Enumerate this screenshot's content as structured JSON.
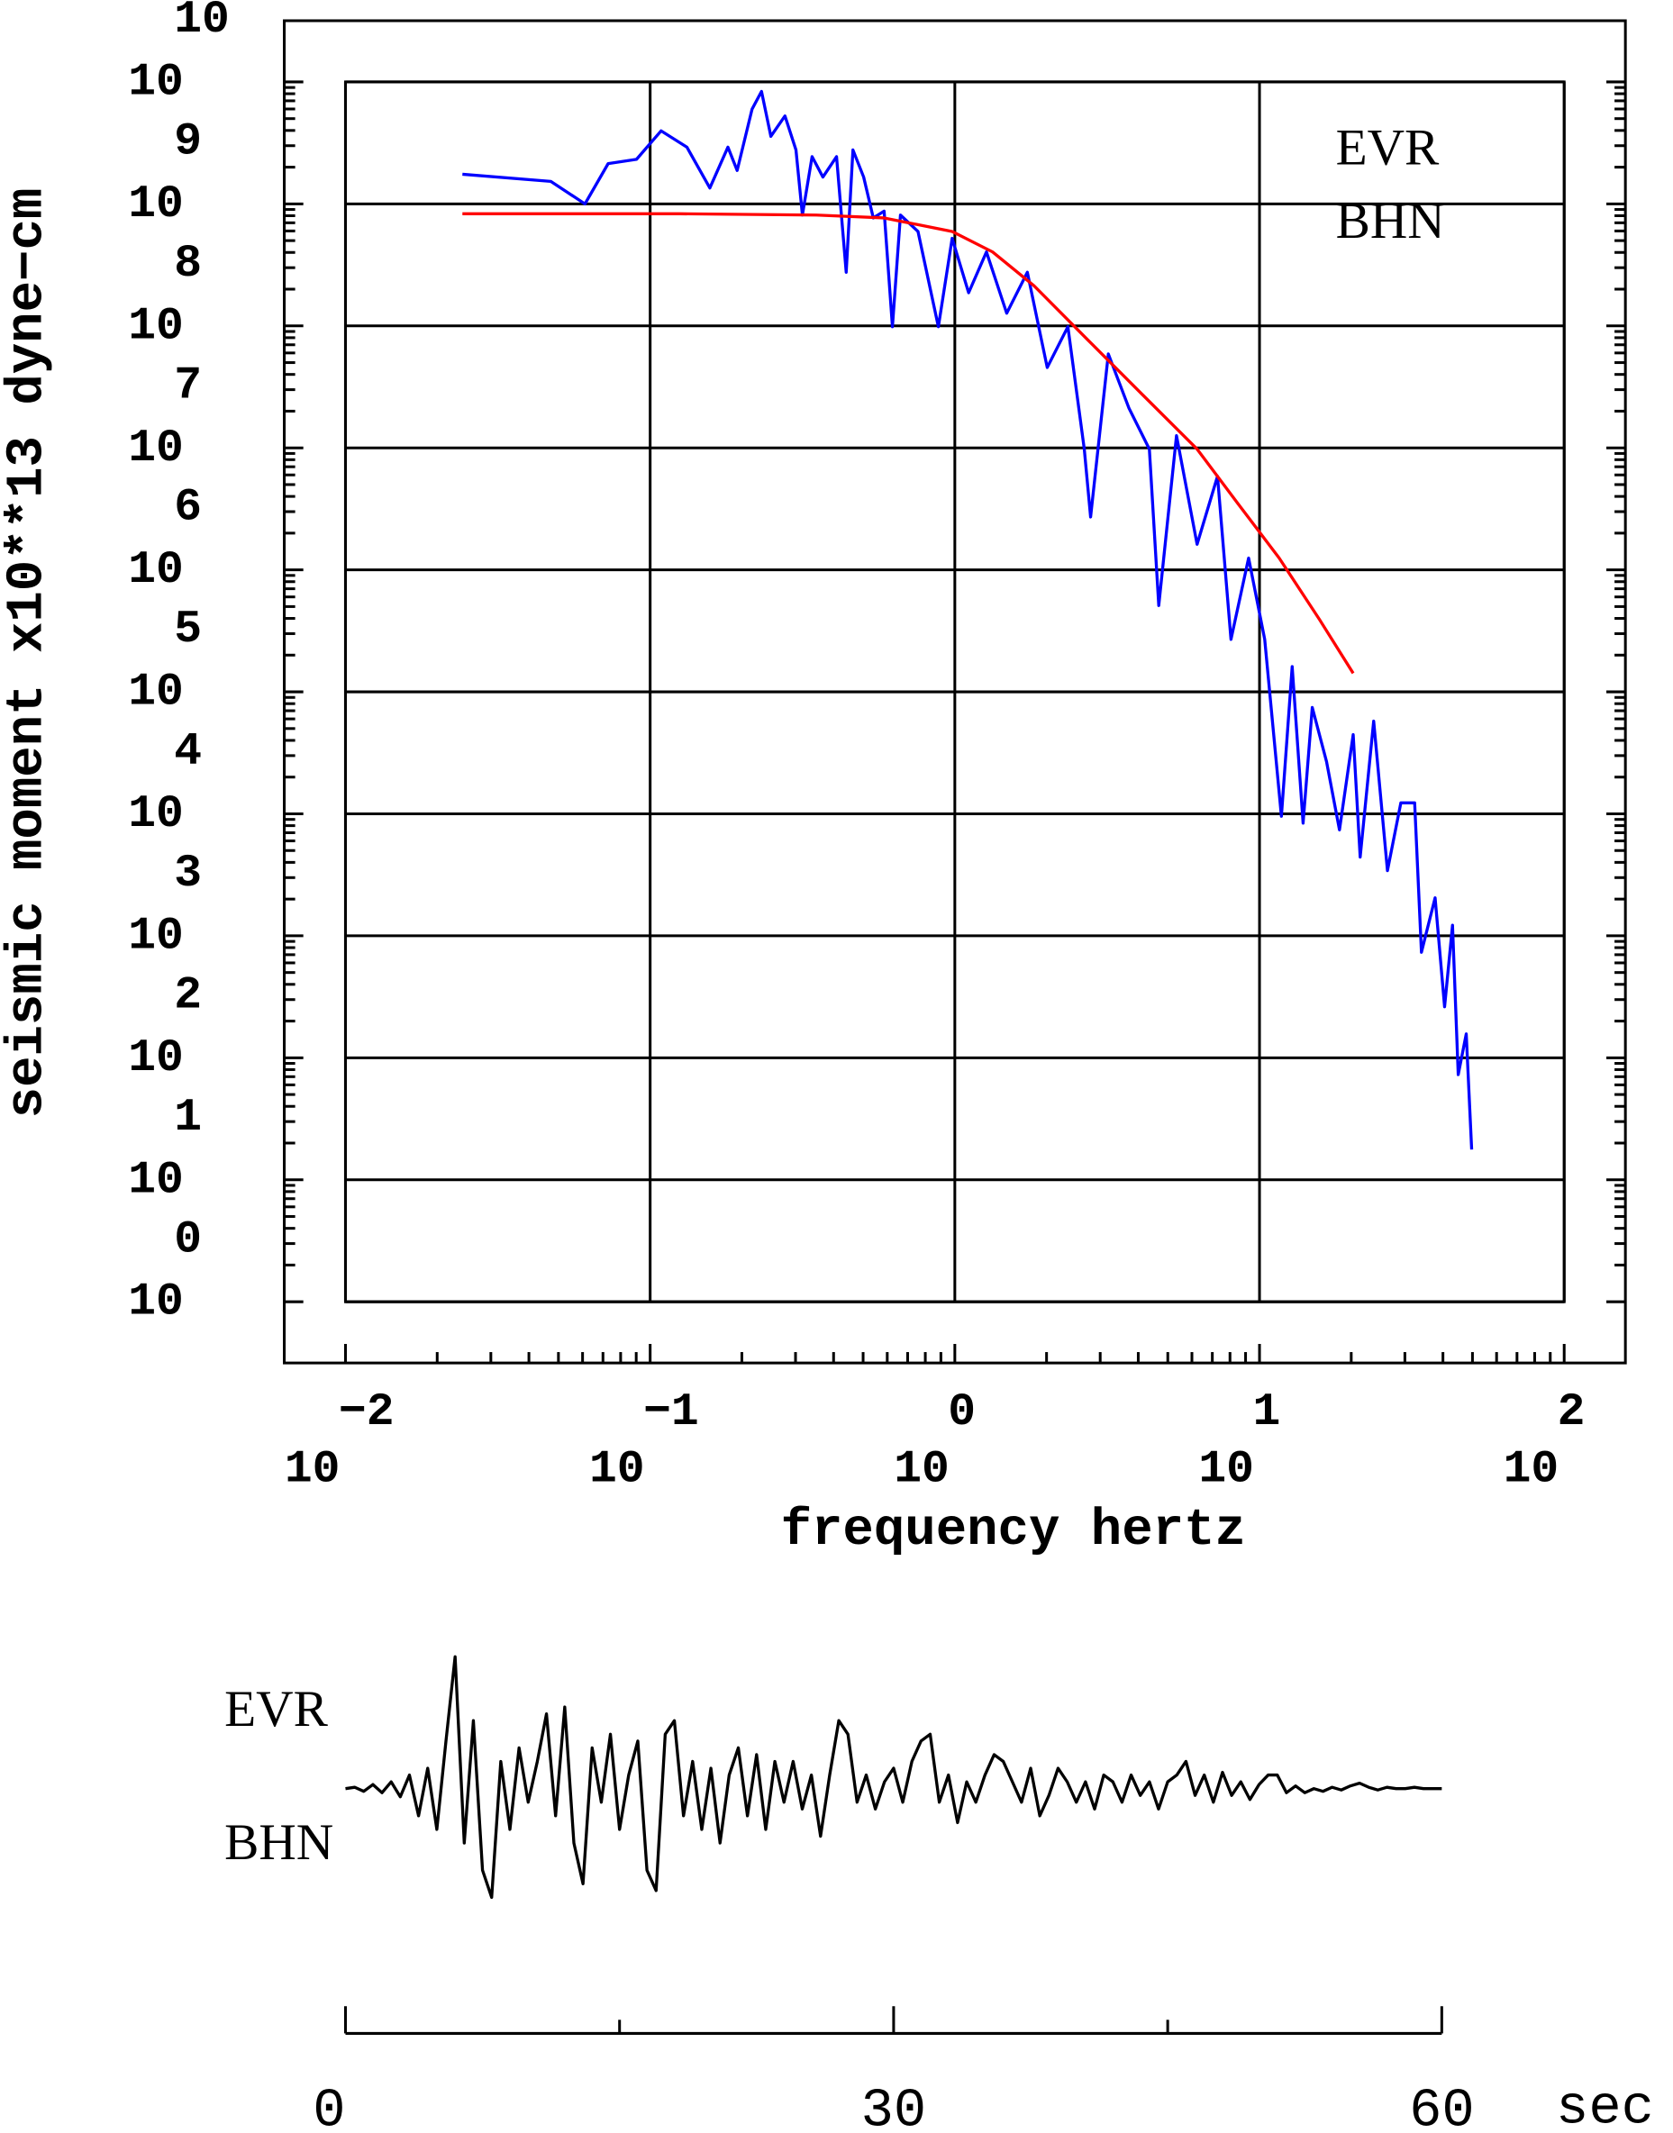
{
  "chart_data": [
    {
      "type": "line",
      "xlog": true,
      "ylog": true,
      "grid": true,
      "xlabel": "frequency  hertz",
      "ylabel": "seismic moment x10**13 dyne−cm",
      "annotations": [
        "EVR",
        "BHN"
      ],
      "xlim": [
        0.01,
        100
      ],
      "ylim": [
        1,
        10000000000
      ],
      "xticks": [
        {
          "value": 0.01,
          "label": [
            "10",
            "−2"
          ]
        },
        {
          "value": 0.1,
          "label": [
            "10",
            "−1"
          ]
        },
        {
          "value": 1,
          "label": [
            "10",
            "0"
          ]
        },
        {
          "value": 10,
          "label": [
            "10",
            "1"
          ]
        },
        {
          "value": 100,
          "label": [
            "10",
            "2"
          ]
        }
      ],
      "yticks": [
        {
          "value": 1,
          "label": [
            "10",
            "0"
          ]
        },
        {
          "value": 10,
          "label": [
            "10",
            "1"
          ]
        },
        {
          "value": 100,
          "label": [
            "10",
            "2"
          ]
        },
        {
          "value": 1000,
          "label": [
            "10",
            "3"
          ]
        },
        {
          "value": 10000,
          "label": [
            "10",
            "4"
          ]
        },
        {
          "value": 100000,
          "label": [
            "10",
            "5"
          ]
        },
        {
          "value": 1000000,
          "label": [
            "10",
            "6"
          ]
        },
        {
          "value": 10000000,
          "label": [
            "10",
            "7"
          ]
        },
        {
          "value": 100000000,
          "label": [
            "10",
            "8"
          ]
        },
        {
          "value": 1000000000,
          "label": [
            "10",
            "9"
          ]
        },
        {
          "value": 10000000000,
          "label": [
            "10",
            "10"
          ]
        }
      ],
      "series": [
        {
          "color": "#0000ff",
          "x": [
            0.0242,
            0.0472,
            0.0611,
            0.0728,
            0.0902,
            0.1086,
            0.132,
            0.157,
            0.18,
            0.193,
            0.216,
            0.232,
            0.249,
            0.277,
            0.301,
            0.316,
            0.34,
            0.369,
            0.409,
            0.44,
            0.463,
            0.502,
            0.54,
            0.586,
            0.624,
            0.663,
            0.757,
            0.883,
            0.98,
            1.11,
            1.27,
            1.48,
            1.73,
            2.01,
            2.35,
            2.66,
            2.79,
            3.19,
            3.73,
            4.35,
            4.67,
            5.34,
            6.24,
            7.28,
            8.06,
            9.21,
            10.4,
            11.8,
            12.8,
            13.9,
            14.9,
            16.6,
            18.3,
            20.3,
            21.4,
            23.7,
            26.3,
            29.1,
            32.3,
            34.0,
            37.7,
            40.5,
            43.0,
            44.9,
            47.7,
            49.7
          ],
          "values": [
            1750000000,
            1530000000,
            1000000000,
            2140000000,
            2320000000,
            3970000000,
            2920000000,
            1350000000,
            2920000000,
            1880000000,
            5980000000,
            8360000000,
            3580000000,
            5260000000,
            2770000000,
            810000000,
            2440000000,
            1660000000,
            2440000000,
            275000000,
            2770000000,
            1660000000,
            767000000,
            873000000,
            98400000,
            810000000,
            594000000,
            98400000,
            522000000,
            187000000,
            404000000,
            127000000,
            275000000,
            45600000,
            98400000,
            9770000,
            2710000,
            58900000,
            21100000,
            9770000,
            510000,
            12600000,
            1620000,
            5850000,
            269000,
            1250000,
            269000,
            9550,
            161000,
            8390,
            74500,
            26700,
            7380,
            44600,
            4420,
            57600,
            3420,
            12300,
            12300,
            733,
            2050,
            262,
            1220,
            72.8,
            157,
            17.7
          ]
        },
        {
          "color": "#ff0000",
          "x": [
            0.0242,
            0.125,
            0.351,
            0.586,
            0.98,
            1.33,
            1.82,
            2.74,
            4.13,
            6.24,
            8.49,
            11.6,
            15.7,
            20.3
          ],
          "values": [
            830000000,
            830000000,
            810000000,
            767000000,
            594000000,
            404000000,
            213000000,
            76200000,
            27300000,
            9770000,
            3500000,
            1250000,
            395000,
            142000
          ]
        }
      ]
    },
    {
      "type": "line",
      "annotations": [
        "EVR",
        "BHN"
      ],
      "xunit": "sec",
      "xlim": [
        0,
        60
      ],
      "ylim": [
        -1,
        1
      ],
      "xticks": [
        0,
        30,
        60
      ],
      "xminorticks": [
        15,
        45
      ],
      "series": [
        {
          "color": "#000000",
          "x": [
            0,
            0.5,
            1,
            1.5,
            2,
            2.5,
            3,
            3.5,
            4,
            4.5,
            5,
            5.5,
            6,
            6.5,
            7,
            7.5,
            8,
            8.5,
            9,
            9.5,
            10,
            10.5,
            11,
            11.5,
            12,
            12.5,
            13,
            13.5,
            14,
            14.5,
            15,
            15.5,
            16,
            16.5,
            17,
            17.5,
            18,
            18.5,
            19,
            19.5,
            20,
            20.5,
            21,
            21.5,
            22,
            22.5,
            23,
            23.5,
            24,
            24.5,
            25,
            25.5,
            26,
            26.5,
            27,
            27.5,
            28,
            28.5,
            29,
            29.5,
            30,
            30.5,
            31,
            31.5,
            32,
            32.5,
            33,
            33.5,
            34,
            34.5,
            35,
            35.5,
            36,
            36.5,
            37,
            37.5,
            38,
            38.5,
            39,
            39.5,
            40,
            40.5,
            41,
            41.5,
            42,
            42.5,
            43,
            43.5,
            44,
            44.5,
            45,
            45.5,
            46,
            46.5,
            47,
            47.5,
            48,
            48.5,
            49,
            49.5,
            50,
            50.5,
            51,
            51.5,
            52,
            52.5,
            53,
            53.5,
            54,
            54.5,
            55,
            55.5,
            56,
            56.5,
            57,
            57.5,
            58,
            58.5,
            59,
            59.5,
            60
          ],
          "values": [
            0,
            0.01,
            -0.02,
            0.03,
            -0.03,
            0.05,
            -0.06,
            0.1,
            -0.2,
            0.15,
            -0.3,
            0.35,
            0.97,
            -0.4,
            0.5,
            -0.6,
            -0.8,
            0.2,
            -0.3,
            0.3,
            -0.1,
            0.2,
            0.55,
            -0.2,
            0.6,
            -0.4,
            -0.7,
            0.3,
            -0.1,
            0.4,
            -0.3,
            0.1,
            0.35,
            -0.6,
            -0.75,
            0.4,
            0.5,
            -0.2,
            0.2,
            -0.3,
            0.15,
            -0.4,
            0.1,
            0.3,
            -0.2,
            0.25,
            -0.3,
            0.2,
            -0.1,
            0.2,
            -0.15,
            0.1,
            -0.35,
            0.1,
            0.5,
            0.4,
            -0.1,
            0.1,
            -0.15,
            0.05,
            0.15,
            -0.1,
            0.2,
            0.35,
            0.4,
            -0.1,
            0.1,
            -0.25,
            0.05,
            -0.1,
            0.1,
            0.25,
            0.2,
            0.05,
            -0.1,
            0.15,
            -0.2,
            -0.05,
            0.15,
            0.05,
            -0.1,
            0.05,
            -0.15,
            0.1,
            0.05,
            -0.1,
            0.1,
            -0.05,
            0.05,
            -0.15,
            0.05,
            0.1,
            0.2,
            -0.05,
            0.1,
            -0.1,
            0.12,
            -0.05,
            0.05,
            -0.08,
            0.03,
            0.1,
            0.1,
            -0.03,
            0.02,
            -0.03,
            0,
            -0.02,
            0.01,
            -0.01,
            0.02,
            0.04,
            0.01,
            -0.01,
            0.01,
            0,
            0,
            0.01,
            0,
            0,
            0
          ]
        }
      ]
    }
  ]
}
